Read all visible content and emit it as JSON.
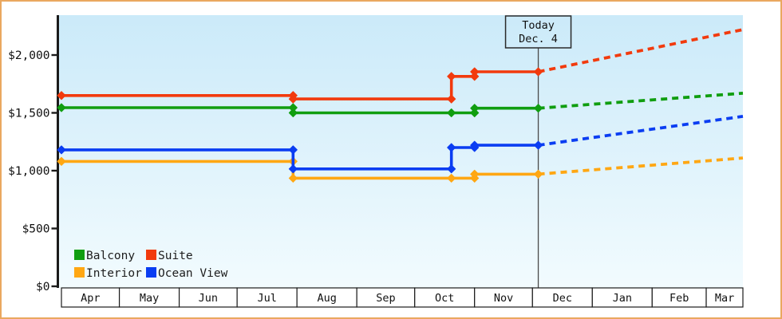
{
  "page": {
    "border_color": "#eaa85f",
    "background": "#ffffff"
  },
  "chart_data": {
    "type": "line",
    "description": "Cabin price history by category with projection after today",
    "grid": false,
    "legend_position": "bottom-left-inside",
    "x_axis": {
      "unit": "months",
      "labels": [
        "Apr",
        "May",
        "Jun",
        "Jul",
        "Aug",
        "Sep",
        "Oct",
        "Nov",
        "Dec",
        "Jan",
        "Feb",
        "Mar"
      ],
      "days_per_month": [
        30,
        31,
        30,
        31,
        31,
        30,
        31,
        30,
        31,
        31,
        28,
        31
      ],
      "visible_end_day": 353
    },
    "y_axis": {
      "tick_values": [
        0,
        500,
        1000,
        1500,
        2000
      ],
      "tick_labels": [
        "$0",
        "$500",
        "$1,000",
        "$1,500",
        "$2,000"
      ],
      "range": [
        0,
        2345
      ]
    },
    "annotation": {
      "line1": "Today",
      "line2": "Dec. 4",
      "day": 247
    },
    "colors": {
      "plot_bg_top": "#cbeaf9",
      "plot_bg_bottom": "#f2fbfe",
      "axis": "#1b1b1b",
      "text": "#111111",
      "today_line": "#4a4a4a",
      "month_band_bg": "#ffffff"
    },
    "series": [
      {
        "name": "Balcony",
        "color": "#109e10",
        "solid_points": [
          [
            0,
            1545
          ],
          [
            120,
            1545
          ],
          [
            120,
            1500
          ],
          [
            202,
            1500
          ],
          [
            214,
            1500
          ],
          [
            214,
            1540
          ],
          [
            247,
            1540
          ]
        ],
        "projection_points": [
          [
            247,
            1540
          ],
          [
            353,
            1670
          ]
        ]
      },
      {
        "name": "Suite",
        "color": "#f23a0d",
        "solid_points": [
          [
            0,
            1650
          ],
          [
            120,
            1650
          ],
          [
            120,
            1620
          ],
          [
            202,
            1620
          ],
          [
            202,
            1815
          ],
          [
            214,
            1815
          ],
          [
            214,
            1855
          ],
          [
            247,
            1855
          ]
        ],
        "projection_points": [
          [
            247,
            1855
          ],
          [
            353,
            2220
          ]
        ]
      },
      {
        "name": "Interior",
        "color": "#ffa713",
        "solid_points": [
          [
            0,
            1080
          ],
          [
            120,
            1080
          ],
          [
            120,
            935
          ],
          [
            202,
            935
          ],
          [
            214,
            935
          ],
          [
            214,
            970
          ],
          [
            247,
            970
          ]
        ],
        "projection_points": [
          [
            247,
            970
          ],
          [
            353,
            1110
          ]
        ]
      },
      {
        "name": "Ocean View",
        "color": "#0a3df2",
        "solid_points": [
          [
            0,
            1180
          ],
          [
            120,
            1180
          ],
          [
            120,
            1015
          ],
          [
            202,
            1015
          ],
          [
            202,
            1200
          ],
          [
            214,
            1200
          ],
          [
            214,
            1220
          ],
          [
            247,
            1220
          ]
        ],
        "projection_points": [
          [
            247,
            1220
          ],
          [
            353,
            1470
          ]
        ]
      }
    ],
    "legend": {
      "rows": [
        [
          "Balcony",
          "Suite"
        ],
        [
          "Interior",
          "Ocean View"
        ]
      ]
    }
  }
}
